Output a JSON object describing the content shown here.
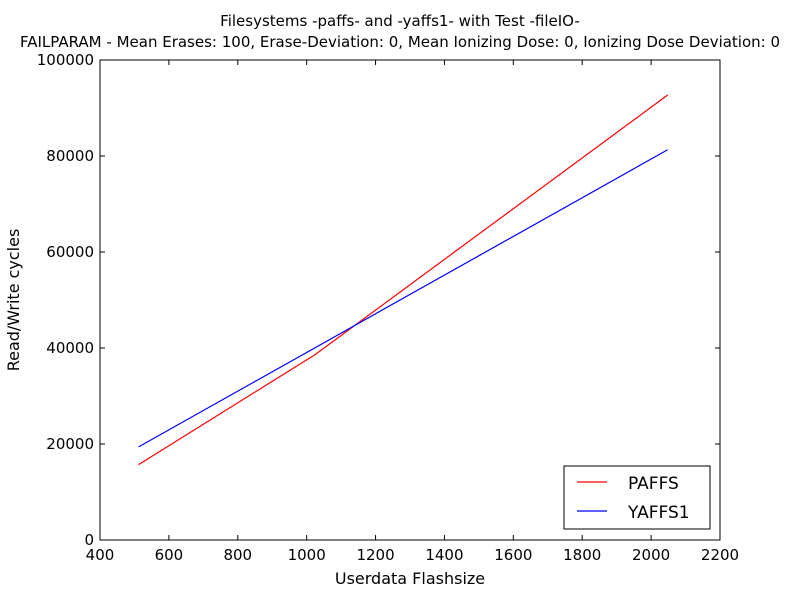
{
  "chart_data": {
    "type": "line",
    "title": "Filesystems -paffs- and -yaffs1- with Test -fileIO-",
    "subtitle": "FAILPARAM - Mean Erases: 100, Erase-Deviation: 0, Mean Ionizing Dose: 0, Ionizing Dose Deviation: 0",
    "xlabel": "Userdata Flashsize",
    "ylabel": "Read/Write cycles",
    "xlim": [
      400,
      2200
    ],
    "ylim": [
      0,
      100000
    ],
    "xticks": [
      "400",
      "600",
      "800",
      "1000",
      "1200",
      "1400",
      "1600",
      "1800",
      "2000",
      "2200"
    ],
    "yticks": [
      "0",
      "20000",
      "40000",
      "60000",
      "80000",
      "100000"
    ],
    "grid": false,
    "legend_position": "lower-right",
    "series": [
      {
        "name": "PAFFS",
        "color": "#ff0000",
        "x": [
          512,
          1024,
          2048
        ],
        "y": [
          15700,
          38600,
          92700
        ]
      },
      {
        "name": "YAFFS1",
        "color": "#0000ff",
        "x": [
          512,
          2048
        ],
        "y": [
          19400,
          81300
        ]
      }
    ]
  }
}
